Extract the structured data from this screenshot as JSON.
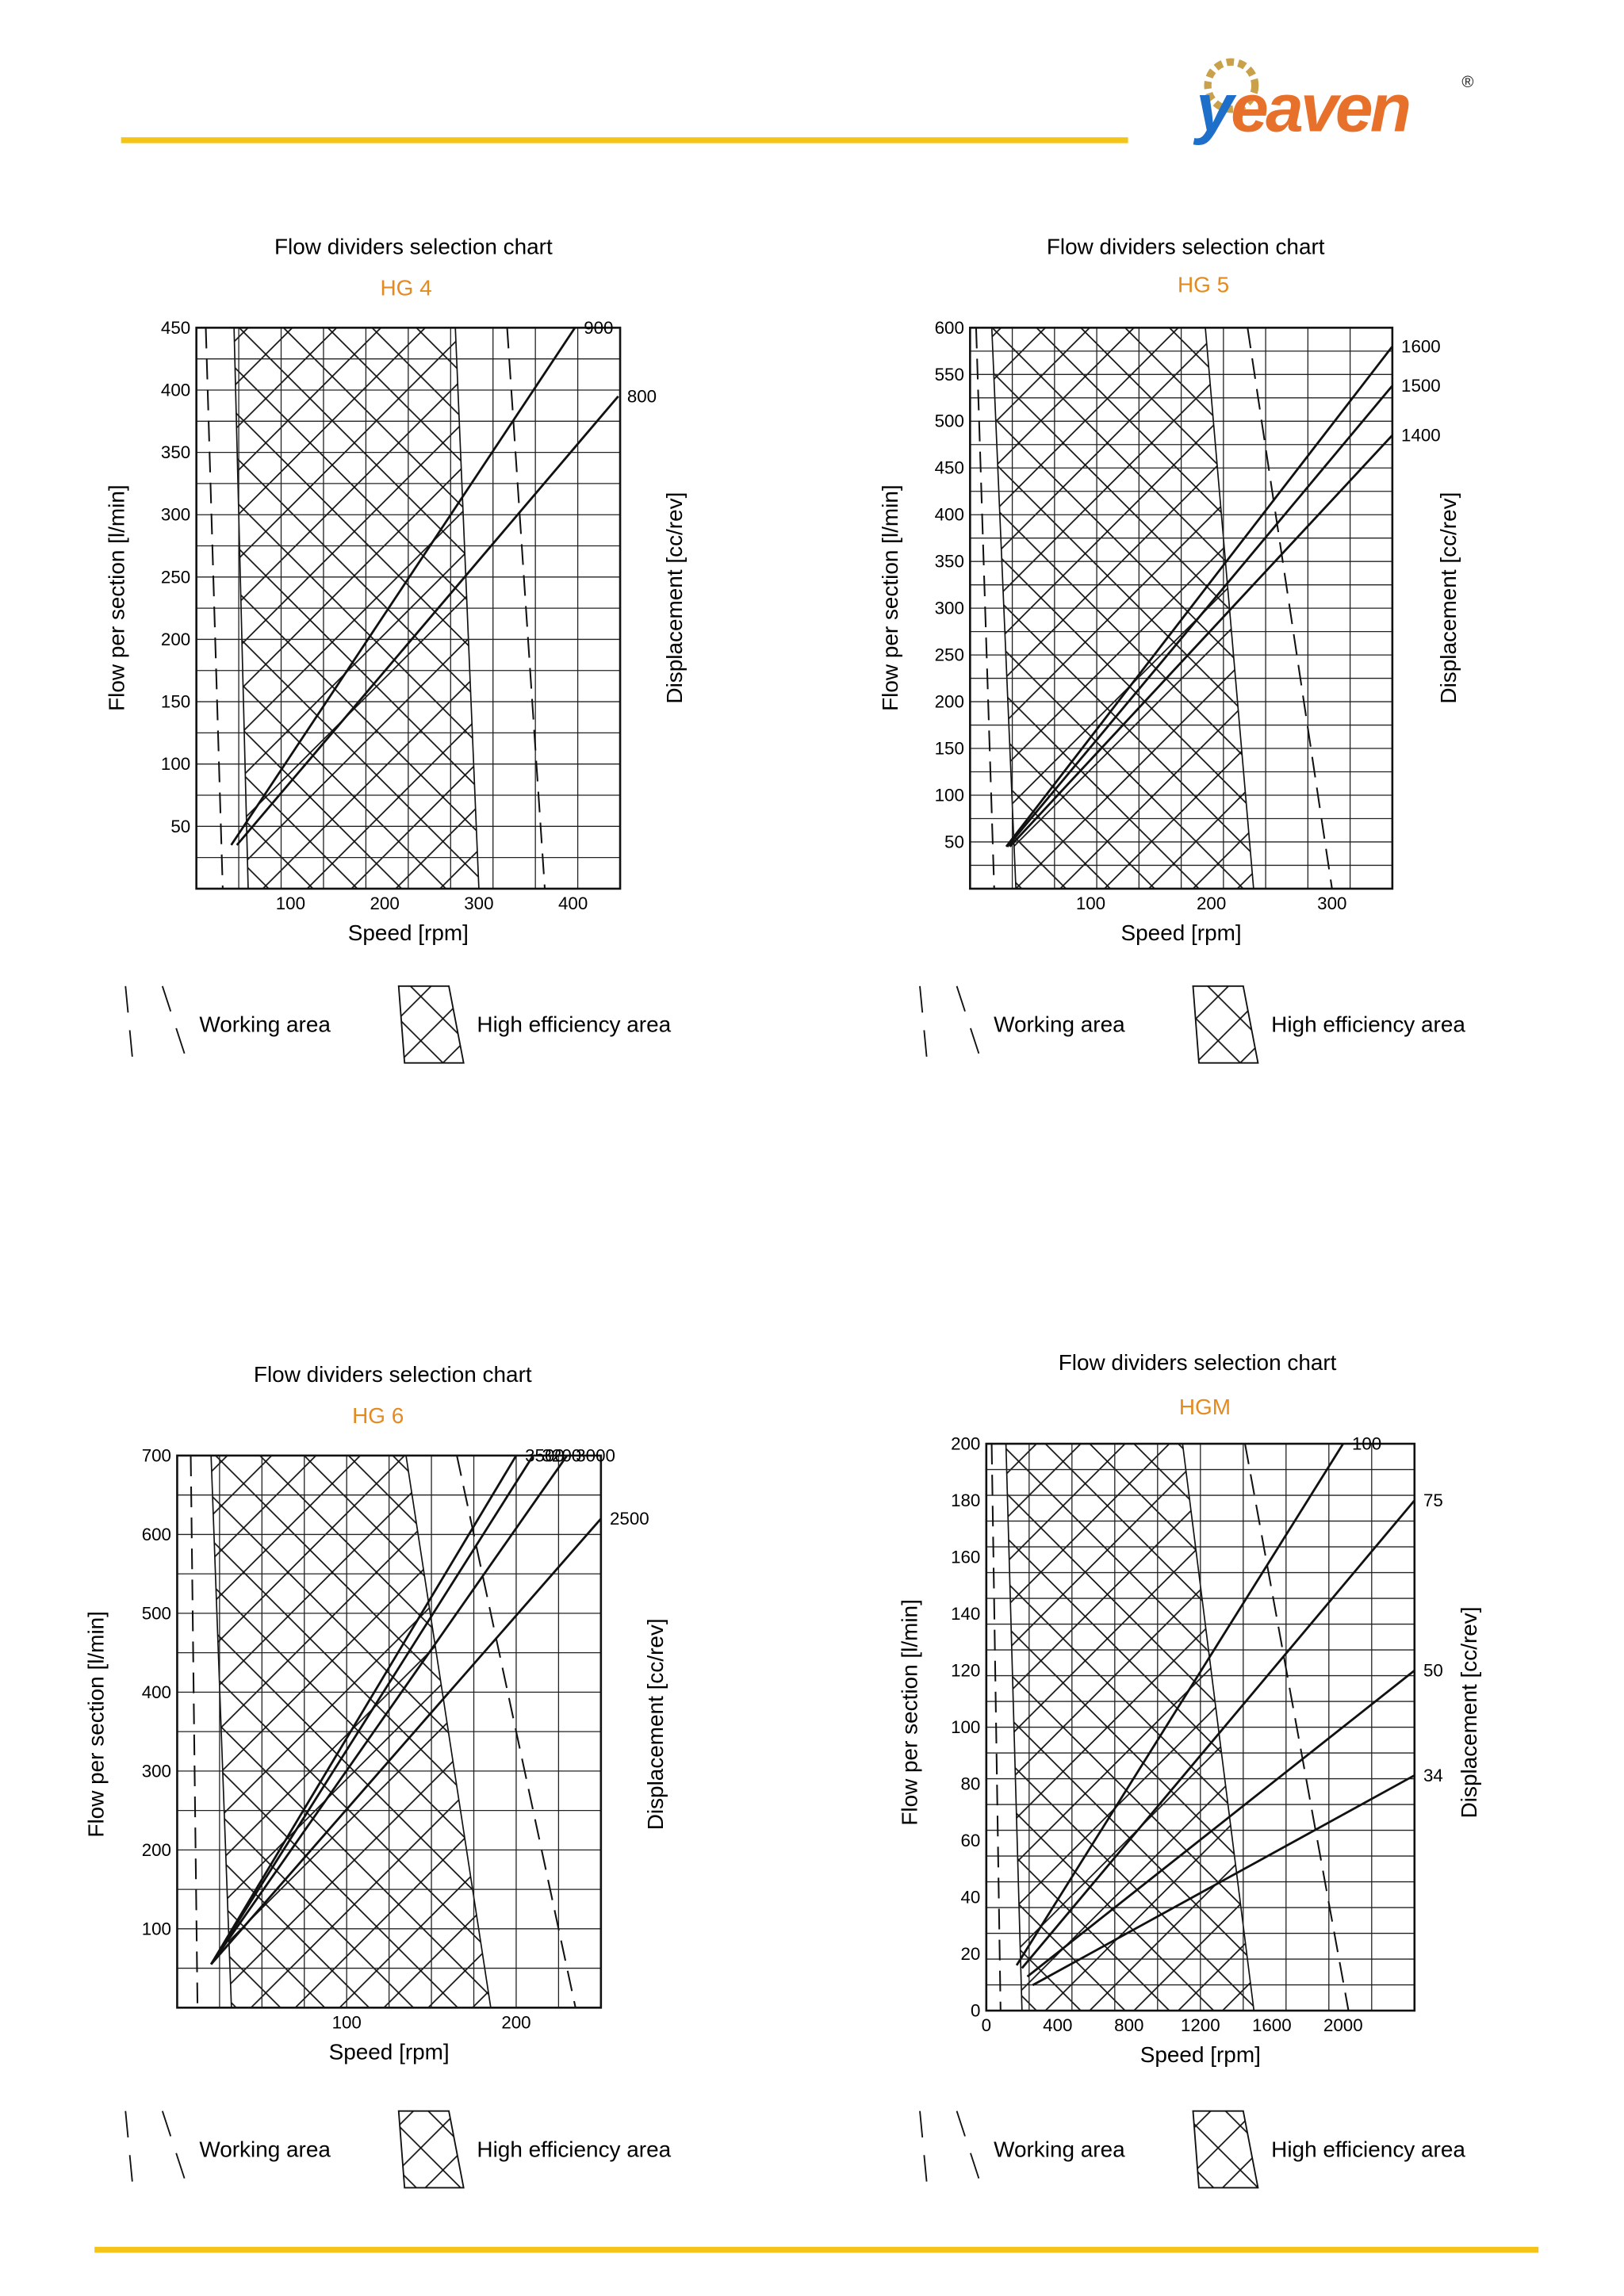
{
  "logo": {
    "text": "yeaven",
    "registered": "®"
  },
  "legend": {
    "working": "Working area",
    "high": "High efficiency area"
  },
  "chart_data": [
    {
      "type": "line",
      "title": "Flow dividers selection chart",
      "subtitle": "HG 4",
      "xlabel": "Speed [rpm]",
      "ylabel": "Flow per section [l/min]",
      "y2label": "Displacement [cc/rev]",
      "xlim": [
        0,
        450
      ],
      "ylim": [
        0,
        450
      ],
      "x_ticks": [
        100,
        200,
        300,
        400
      ],
      "y_ticks": [
        50,
        100,
        150,
        200,
        250,
        300,
        350,
        400,
        450
      ],
      "grid": true,
      "series": [
        {
          "name": "900",
          "x": [
            37,
            402
          ],
          "y": [
            35,
            450
          ]
        },
        {
          "name": "800",
          "x": [
            43,
            448
          ],
          "y": [
            35,
            395
          ]
        }
      ],
      "working_area": {
        "left": [
          [
            10,
            450
          ],
          [
            28,
            0
          ]
        ],
        "right": [
          [
            330,
            450
          ],
          [
            370,
            0
          ]
        ]
      },
      "high_eff_area": {
        "left": [
          [
            40,
            450
          ],
          [
            55,
            0
          ]
        ],
        "right": [
          [
            275,
            450
          ],
          [
            300,
            0
          ]
        ]
      }
    },
    {
      "type": "line",
      "title": "Flow dividers selection chart",
      "subtitle": "HG 5",
      "xlabel": "Speed [rpm]",
      "ylabel": "Flow per section [l/min]",
      "y2label": "Displacement [cc/rev]",
      "xlim": [
        0,
        350
      ],
      "ylim": [
        0,
        600
      ],
      "x_ticks": [
        100,
        200,
        300
      ],
      "y_ticks": [
        50,
        100,
        150,
        200,
        250,
        300,
        350,
        400,
        450,
        500,
        550,
        600
      ],
      "grid": true,
      "series": [
        {
          "name": "1600",
          "x": [
            30,
            350
          ],
          "y": [
            45,
            580
          ]
        },
        {
          "name": "1500",
          "x": [
            31,
            350
          ],
          "y": [
            45,
            538
          ]
        },
        {
          "name": "1400",
          "x": [
            33,
            350
          ],
          "y": [
            45,
            485
          ]
        }
      ],
      "working_area": {
        "left": [
          [
            5,
            600
          ],
          [
            20,
            0
          ]
        ],
        "right": [
          [
            230,
            600
          ],
          [
            300,
            0
          ]
        ]
      },
      "high_eff_area": {
        "left": [
          [
            18,
            600
          ],
          [
            38,
            0
          ]
        ],
        "right": [
          [
            195,
            600
          ],
          [
            235,
            0
          ]
        ]
      }
    },
    {
      "type": "line",
      "title": "Flow dividers selection chart",
      "subtitle": "HG 6",
      "xlabel": "Speed [rpm]",
      "ylabel": "Flow per section [l/min]",
      "y2label": "Displacement [cc/rev]",
      "xlim": [
        0,
        250
      ],
      "ylim": [
        0,
        700
      ],
      "x_ticks": [
        100,
        200
      ],
      "y_ticks": [
        100,
        200,
        300,
        400,
        500,
        600,
        700
      ],
      "grid": true,
      "series": [
        {
          "name": "3500",
          "x": [
            20,
            200
          ],
          "y": [
            55,
            700
          ]
        },
        {
          "name": "3200",
          "x": [
            20,
            210
          ],
          "y": [
            55,
            700
          ]
        },
        {
          "name": "3000",
          "x": [
            20,
            230
          ],
          "y": [
            55,
            700
          ]
        },
        {
          "name": "2500",
          "x": [
            20,
            250
          ],
          "y": [
            55,
            620
          ]
        }
      ],
      "working_area": {
        "left": [
          [
            8,
            700
          ],
          [
            12,
            0
          ]
        ],
        "right": [
          [
            165,
            700
          ],
          [
            235,
            0
          ]
        ]
      },
      "high_eff_area": {
        "left": [
          [
            20,
            700
          ],
          [
            32,
            0
          ]
        ],
        "right": [
          [
            135,
            700
          ],
          [
            185,
            0
          ]
        ]
      }
    },
    {
      "type": "line",
      "title": "Flow dividers selection chart",
      "subtitle": "HGM",
      "xlabel": "Speed [rpm]",
      "ylabel": "Flow per section [l/min]",
      "y2label": "Displacement [cc/rev]",
      "xlim": [
        0,
        2400
      ],
      "ylim": [
        0,
        200
      ],
      "x_ticks": [
        0,
        400,
        800,
        1200,
        1600,
        2000
      ],
      "y_ticks": [
        0,
        20,
        40,
        60,
        80,
        100,
        120,
        140,
        160,
        180,
        200
      ],
      "grid": true,
      "series": [
        {
          "name": "100",
          "x": [
            170,
            2000
          ],
          "y": [
            16,
            200
          ]
        },
        {
          "name": "75",
          "x": [
            200,
            2400
          ],
          "y": [
            15,
            180
          ]
        },
        {
          "name": "50",
          "x": [
            230,
            2400
          ],
          "y": [
            12,
            120
          ]
        },
        {
          "name": "34",
          "x": [
            260,
            2400
          ],
          "y": [
            9,
            83
          ]
        }
      ],
      "working_area": {
        "left": [
          [
            30,
            200
          ],
          [
            80,
            0
          ]
        ],
        "right": [
          [
            1450,
            200
          ],
          [
            2030,
            0
          ]
        ]
      },
      "high_eff_area": {
        "left": [
          [
            110,
            200
          ],
          [
            200,
            0
          ]
        ],
        "right": [
          [
            1100,
            200
          ],
          [
            1500,
            0
          ]
        ]
      }
    }
  ]
}
